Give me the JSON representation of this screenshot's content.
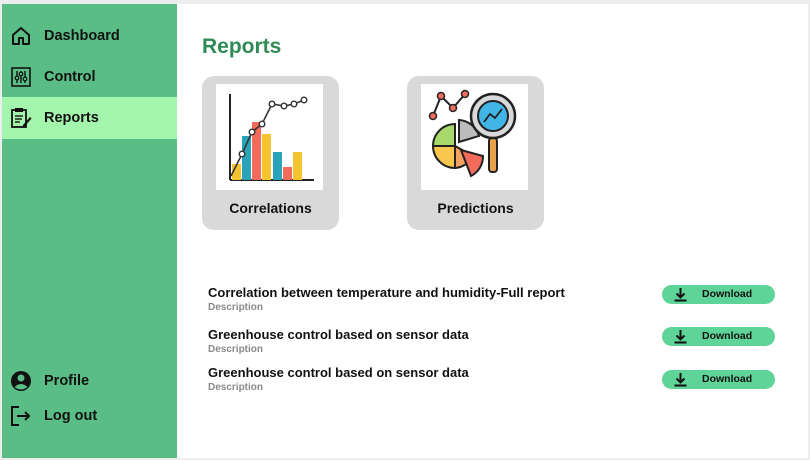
{
  "sidebar": {
    "top_items": [
      {
        "label": "Dashboard",
        "icon": "home-icon"
      },
      {
        "label": "Control",
        "icon": "sliders-icon"
      },
      {
        "label": "Reports",
        "icon": "clipboard-edit-icon",
        "active": true
      }
    ],
    "bottom_items": [
      {
        "label": "Profile",
        "icon": "user-circle-icon"
      },
      {
        "label": "Log out",
        "icon": "logout-icon"
      }
    ]
  },
  "main": {
    "title": "Reports",
    "cards": [
      {
        "label": "Correlations",
        "icon": "bar-line-chart-icon"
      },
      {
        "label": "Predictions",
        "icon": "pie-magnifier-icon"
      }
    ],
    "reports": [
      {
        "title": "Correlation between temperature and humidity-Full report",
        "description": "Description",
        "button": "Download"
      },
      {
        "title": "Greenhouse control based on sensor data",
        "description": "Description",
        "button": "Download"
      },
      {
        "title": "Greenhouse control based on sensor data",
        "description": "Description",
        "button": "Download"
      }
    ]
  },
  "colors": {
    "sidebar_bg": "#5abd85",
    "active_item_bg": "#a4f5ad",
    "title_green": "#2e8b57",
    "button_green": "#5fd498",
    "card_bg": "#d9d9d9"
  }
}
